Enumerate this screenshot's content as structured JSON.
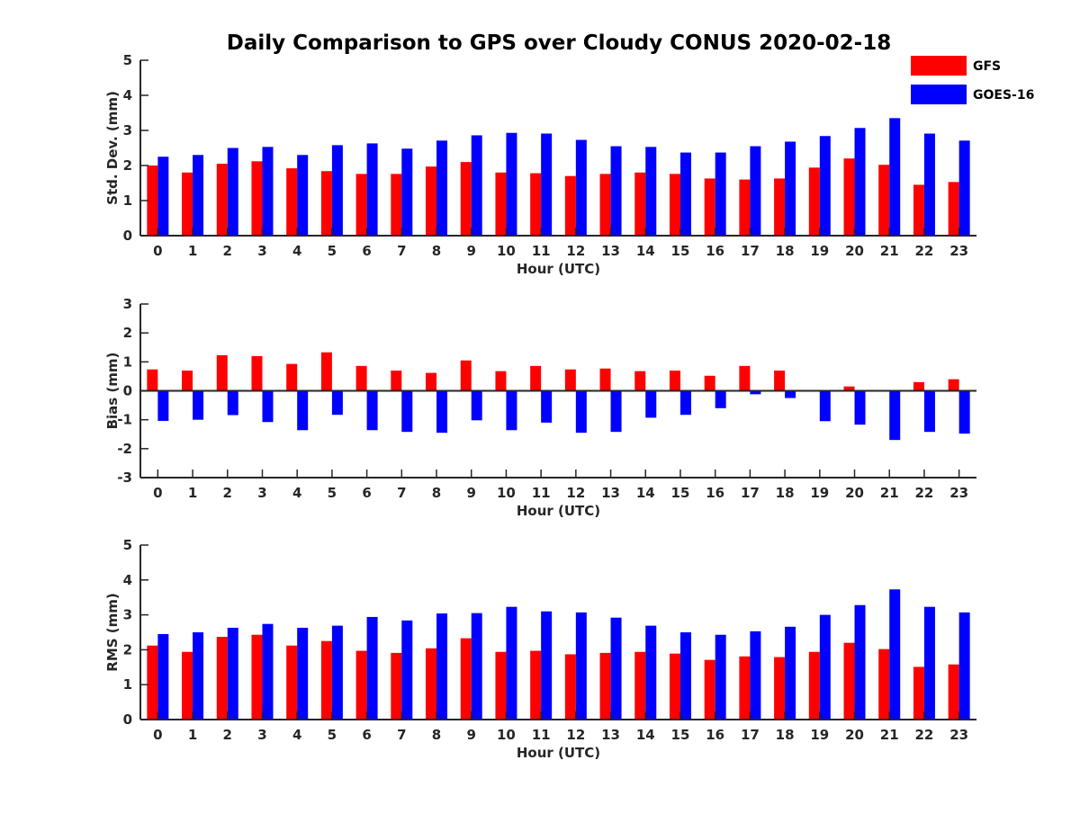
{
  "figure": {
    "title": "Daily Comparison to GPS over Cloudy CONUS 2020-02-18"
  },
  "legend": [
    {
      "name": "GFS",
      "color": "#ff0000"
    },
    {
      "name": "GOES-16",
      "color": "#0000ff"
    }
  ],
  "chart_data": [
    {
      "type": "bar",
      "xlabel": "Hour (UTC)",
      "ylabel": "Std. Dev. (mm)",
      "ylim": [
        0,
        5
      ],
      "yticks": [
        0,
        1,
        2,
        3,
        4,
        5
      ],
      "categories": [
        0,
        1,
        2,
        3,
        4,
        5,
        6,
        7,
        8,
        9,
        10,
        11,
        12,
        13,
        14,
        15,
        16,
        17,
        18,
        19,
        20,
        21,
        22,
        23
      ],
      "series": [
        {
          "name": "GFS",
          "color": "#ff0000",
          "values": [
            2.0,
            1.8,
            2.05,
            2.12,
            1.92,
            1.84,
            1.76,
            1.76,
            1.97,
            2.1,
            1.8,
            1.78,
            1.7,
            1.76,
            1.8,
            1.76,
            1.63,
            1.6,
            1.63,
            1.94,
            2.2,
            2.02,
            1.45,
            1.53
          ]
        },
        {
          "name": "GOES-16",
          "color": "#0000ff",
          "values": [
            2.25,
            2.3,
            2.5,
            2.53,
            2.3,
            2.58,
            2.63,
            2.48,
            2.71,
            2.86,
            2.93,
            2.91,
            2.73,
            2.55,
            2.53,
            2.37,
            2.37,
            2.55,
            2.68,
            2.84,
            3.07,
            3.35,
            2.91,
            2.71
          ]
        }
      ],
      "legend": "top-right",
      "grid": false
    },
    {
      "type": "bar",
      "xlabel": "Hour (UTC)",
      "ylabel": "Bias (mm)",
      "ylim": [
        -3,
        3
      ],
      "yticks": [
        -3,
        -2,
        -1,
        0,
        1,
        2,
        3
      ],
      "categories": [
        0,
        1,
        2,
        3,
        4,
        5,
        6,
        7,
        8,
        9,
        10,
        11,
        12,
        13,
        14,
        15,
        16,
        17,
        18,
        19,
        20,
        21,
        22,
        23
      ],
      "series": [
        {
          "name": "GFS",
          "color": "#ff0000",
          "values": [
            0.74,
            0.7,
            1.23,
            1.2,
            0.93,
            1.33,
            0.86,
            0.7,
            0.62,
            1.05,
            0.68,
            0.86,
            0.74,
            0.77,
            0.68,
            0.7,
            0.52,
            0.86,
            0.7,
            0.02,
            0.15,
            0.0,
            0.3,
            0.4
          ]
        },
        {
          "name": "GOES-16",
          "color": "#0000ff",
          "values": [
            -1.04,
            -1.0,
            -0.84,
            -1.08,
            -1.36,
            -0.83,
            -1.36,
            -1.42,
            -1.45,
            -1.02,
            -1.36,
            -1.1,
            -1.45,
            -1.42,
            -0.93,
            -0.83,
            -0.6,
            -0.12,
            -0.25,
            -1.05,
            -1.17,
            -1.7,
            -1.42,
            -1.48
          ]
        }
      ],
      "grid": false
    },
    {
      "type": "bar",
      "xlabel": "Hour (UTC)",
      "ylabel": "RMS (mm)",
      "ylim": [
        0,
        5
      ],
      "yticks": [
        0,
        1,
        2,
        3,
        4,
        5
      ],
      "categories": [
        0,
        1,
        2,
        3,
        4,
        5,
        6,
        7,
        8,
        9,
        10,
        11,
        12,
        13,
        14,
        15,
        16,
        17,
        18,
        19,
        20,
        21,
        22,
        23
      ],
      "series": [
        {
          "name": "GFS",
          "color": "#ff0000",
          "values": [
            2.12,
            1.94,
            2.37,
            2.43,
            2.12,
            2.25,
            1.97,
            1.91,
            2.04,
            2.33,
            1.94,
            1.97,
            1.87,
            1.91,
            1.94,
            1.89,
            1.71,
            1.81,
            1.79,
            1.94,
            2.2,
            2.02,
            1.51,
            1.58
          ]
        },
        {
          "name": "GOES-16",
          "color": "#0000ff",
          "values": [
            2.45,
            2.5,
            2.63,
            2.74,
            2.63,
            2.69,
            2.94,
            2.84,
            3.04,
            3.05,
            3.23,
            3.1,
            3.07,
            2.92,
            2.69,
            2.5,
            2.43,
            2.53,
            2.66,
            3.0,
            3.28,
            3.73,
            3.23,
            3.07
          ]
        }
      ],
      "grid": false
    }
  ]
}
